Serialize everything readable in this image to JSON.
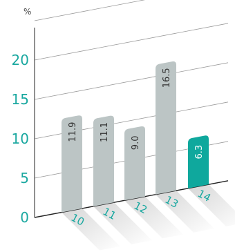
{
  "chart_data": {
    "type": "bar",
    "unit": "%",
    "categories": [
      "10",
      "11",
      "12",
      "13",
      "14"
    ],
    "values": [
      11.9,
      11.1,
      9.0,
      16.5,
      6.3
    ],
    "value_labels": [
      "11.9",
      "11.1",
      "9.0",
      "16.5",
      "6.3"
    ],
    "y_ticks": [
      "0",
      "5",
      "10",
      "15",
      "20"
    ],
    "ylim": [
      0,
      25
    ],
    "grid": true,
    "highlight_index": 4,
    "colors": {
      "bar": "#bcc5c5",
      "highlight": "#0fa89d",
      "tick_text": "#1aa8a0",
      "grid": "#9a9a9a",
      "axis": "#222222",
      "label_dark": "#333333",
      "label_light": "#ffffff"
    }
  }
}
